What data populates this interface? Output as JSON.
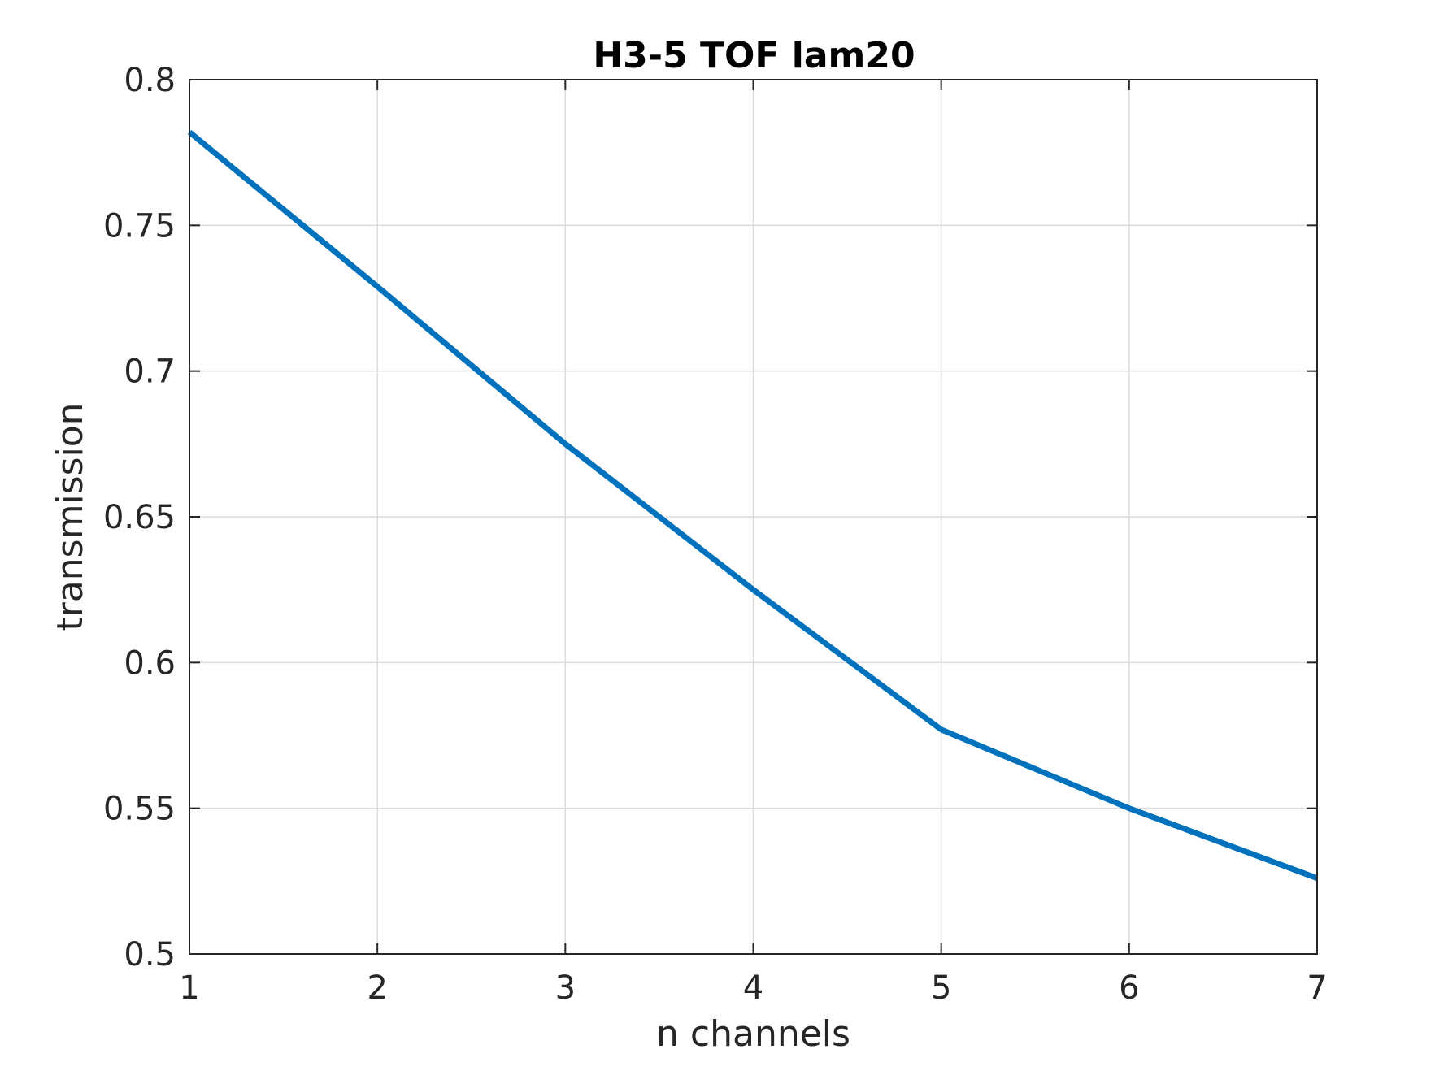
{
  "chart_data": {
    "type": "line",
    "title": "H3-5 TOF lam20",
    "xlabel": "n channels",
    "ylabel": "transmission",
    "xlim": [
      1,
      7
    ],
    "ylim": [
      0.5,
      0.8
    ],
    "xticks": [
      1,
      2,
      3,
      4,
      5,
      6,
      7
    ],
    "yticks": [
      0.5,
      0.55,
      0.6,
      0.65,
      0.7,
      0.75,
      0.8
    ],
    "xtick_labels": [
      "1",
      "2",
      "3",
      "4",
      "5",
      "6",
      "7"
    ],
    "ytick_labels": [
      "0.5",
      "0.55",
      "0.6",
      "0.65",
      "0.7",
      "0.75",
      "0.8"
    ],
    "grid": true,
    "series": [
      {
        "x": [
          1,
          2,
          3,
          4,
          5,
          6,
          7
        ],
        "y": [
          0.782,
          0.729,
          0.675,
          0.625,
          0.577,
          0.55,
          0.526
        ],
        "color": "#0072BD"
      }
    ],
    "colors": {
      "axis": "#262626",
      "grid": "#dcdcdc",
      "title": "#000000"
    }
  }
}
